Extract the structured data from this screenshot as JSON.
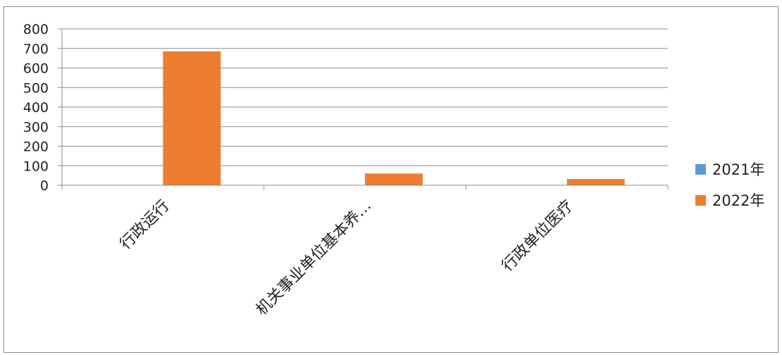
{
  "chart_data": {
    "type": "bar",
    "title": "",
    "xlabel": "",
    "ylabel": "",
    "categories": [
      "行政运行",
      "机关事业单位基本养…",
      "行政单位医疗"
    ],
    "series": [
      {
        "name": "2021年",
        "color": "#5b9bd5",
        "values": [
          0,
          0,
          0
        ]
      },
      {
        "name": "2022年",
        "color": "#ed7d31",
        "values": [
          685,
          60,
          32
        ]
      }
    ],
    "ylim": [
      0,
      800
    ],
    "yticks": [
      0,
      100,
      200,
      300,
      400,
      500,
      600,
      700,
      800
    ],
    "grid": true,
    "legend": "right"
  }
}
